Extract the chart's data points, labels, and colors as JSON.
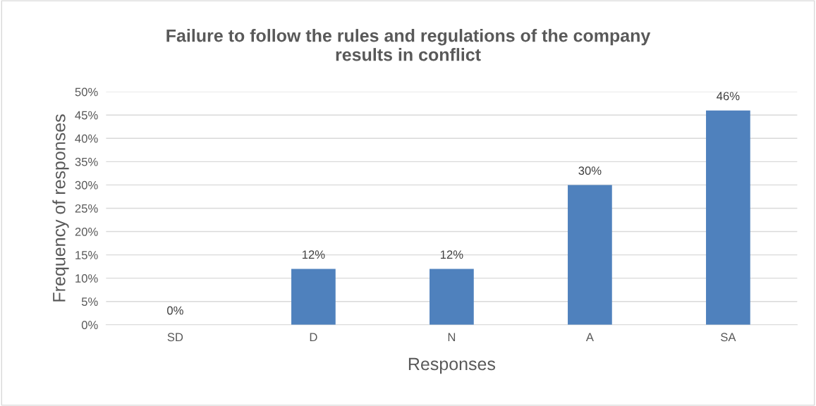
{
  "chart_data": {
    "type": "bar",
    "title": "Failure to follow the rules and regulations of the company\nresults in conflict",
    "xlabel": "Responses",
    "ylabel": "Frequency of responses",
    "categories": [
      "SD",
      "D",
      "N",
      "A",
      "SA"
    ],
    "values": [
      0,
      12,
      12,
      30,
      46
    ],
    "value_labels": [
      "0%",
      "12%",
      "12%",
      "30%",
      "46%"
    ],
    "color": "#4f81bd",
    "ylim": [
      0,
      50
    ],
    "yticks": [
      {
        "value": 0,
        "label": "0%"
      },
      {
        "value": 5,
        "label": "5%"
      },
      {
        "value": 10,
        "label": "10%"
      },
      {
        "value": 15,
        "label": "15%"
      },
      {
        "value": 20,
        "label": "20%"
      },
      {
        "value": 25,
        "label": "25%"
      },
      {
        "value": 30,
        "label": "30%"
      },
      {
        "value": 35,
        "label": "35%"
      },
      {
        "value": 40,
        "label": "40%"
      },
      {
        "value": 45,
        "label": "45%"
      },
      {
        "value": 50,
        "label": "50%"
      }
    ],
    "grid": "y"
  }
}
